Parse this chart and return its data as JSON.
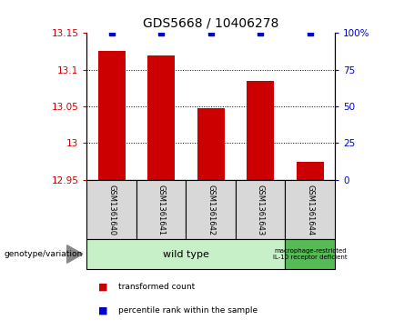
{
  "title": "GDS5668 / 10406278",
  "samples": [
    "GSM1361640",
    "GSM1361641",
    "GSM1361642",
    "GSM1361643",
    "GSM1361644"
  ],
  "red_values": [
    13.125,
    13.12,
    13.048,
    13.085,
    12.975
  ],
  "blue_values": [
    100,
    100,
    100,
    100,
    100
  ],
  "ylim_left": [
    12.95,
    13.15
  ],
  "ylim_right": [
    0,
    100
  ],
  "yticks_left": [
    12.95,
    13.0,
    13.05,
    13.1,
    13.15
  ],
  "ytick_labels_left": [
    "12.95",
    "13",
    "13.05",
    "13.1",
    "13.15"
  ],
  "yticks_right": [
    0,
    25,
    50,
    75,
    100
  ],
  "ytick_labels_right": [
    "0",
    "25",
    "50",
    "75",
    "100%"
  ],
  "grid_yticks": [
    13.0,
    13.05,
    13.1
  ],
  "bar_color": "#cc0000",
  "blue_color": "#0000cc",
  "left_tick_color": "#cc0000",
  "right_tick_color": "#0000cc",
  "bar_width": 0.55,
  "wild_type_label": "wild type",
  "restricted_label": "macrophage-restricted\nIL-10 receptor deficient",
  "wild_type_color": "#c8f0c8",
  "restricted_color": "#55bb55",
  "sample_box_color": "#d8d8d8",
  "legend_red_label": "transformed count",
  "legend_blue_label": "percentile rank within the sample",
  "genotype_label": "genotype/variation"
}
